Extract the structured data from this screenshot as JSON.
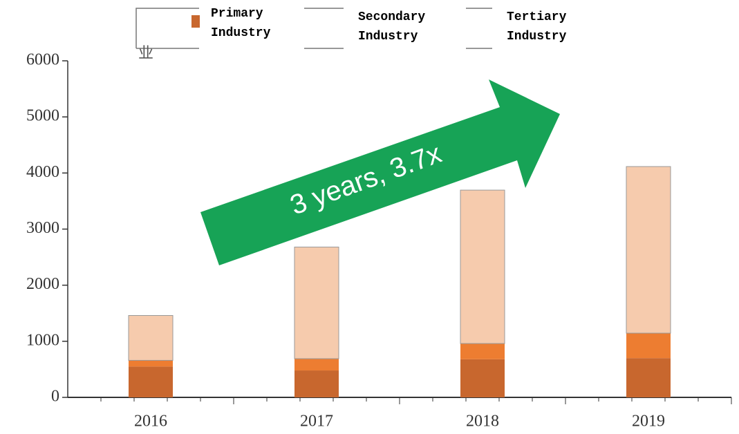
{
  "chart_data": {
    "type": "stacked_bar",
    "categories": [
      "2016",
      "2017",
      "2018",
      "2019"
    ],
    "series": [
      {
        "name": "Primary Industry",
        "color": "#c8672e",
        "values": [
          550,
          480,
          680,
          700
        ]
      },
      {
        "name": "Secondary Industry",
        "color": "#ed7d31",
        "values": [
          110,
          210,
          280,
          445
        ]
      },
      {
        "name": "Tertiary Industry",
        "color": "#f6cbad",
        "values": [
          800,
          1990,
          2735,
          2970
        ]
      }
    ],
    "ylim": [
      0,
      6000
    ],
    "yticks": [
      0,
      1000,
      2000,
      3000,
      4000,
      5000,
      6000
    ],
    "annotations": [
      "3 years, 3.7x",
      "业"
    ]
  }
}
